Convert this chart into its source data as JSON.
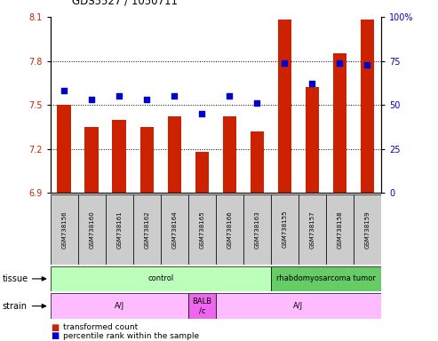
{
  "title": "GDS5527 / 1050711",
  "samples": [
    "GSM738156",
    "GSM738160",
    "GSM738161",
    "GSM738162",
    "GSM738164",
    "GSM738165",
    "GSM738166",
    "GSM738163",
    "GSM738155",
    "GSM738157",
    "GSM738158",
    "GSM738159"
  ],
  "bar_values": [
    7.5,
    7.35,
    7.4,
    7.35,
    7.42,
    7.18,
    7.42,
    7.32,
    8.08,
    7.62,
    7.85,
    8.08
  ],
  "dot_values": [
    58,
    53,
    55,
    53,
    55,
    45,
    55,
    51,
    74,
    62,
    74,
    73
  ],
  "y_min": 6.9,
  "y_max": 8.1,
  "y_ticks": [
    6.9,
    7.2,
    7.5,
    7.8,
    8.1
  ],
  "y2_ticks": [
    0,
    25,
    50,
    75,
    100
  ],
  "bar_color": "#cc2200",
  "dot_color": "#0000cc",
  "tissue_data": [
    {
      "start": 0,
      "end": 7,
      "color": "#bbffbb",
      "label": "control"
    },
    {
      "start": 8,
      "end": 11,
      "color": "#66cc66",
      "label": "rhabdomyosarcoma tumor"
    }
  ],
  "strain_data": [
    {
      "start": 0,
      "end": 4,
      "color": "#ffbbff",
      "label": "A/J"
    },
    {
      "start": 5,
      "end": 5,
      "color": "#ee66ee",
      "label": "BALB\n/c"
    },
    {
      "start": 6,
      "end": 11,
      "color": "#ffbbff",
      "label": "A/J"
    }
  ],
  "legend_items": [
    {
      "color": "#cc2200",
      "label": "transformed count"
    },
    {
      "color": "#0000cc",
      "label": "percentile rank within the sample"
    }
  ],
  "bg_color": "#ffffff",
  "grid_yticks": [
    7.2,
    7.5,
    7.8
  ]
}
